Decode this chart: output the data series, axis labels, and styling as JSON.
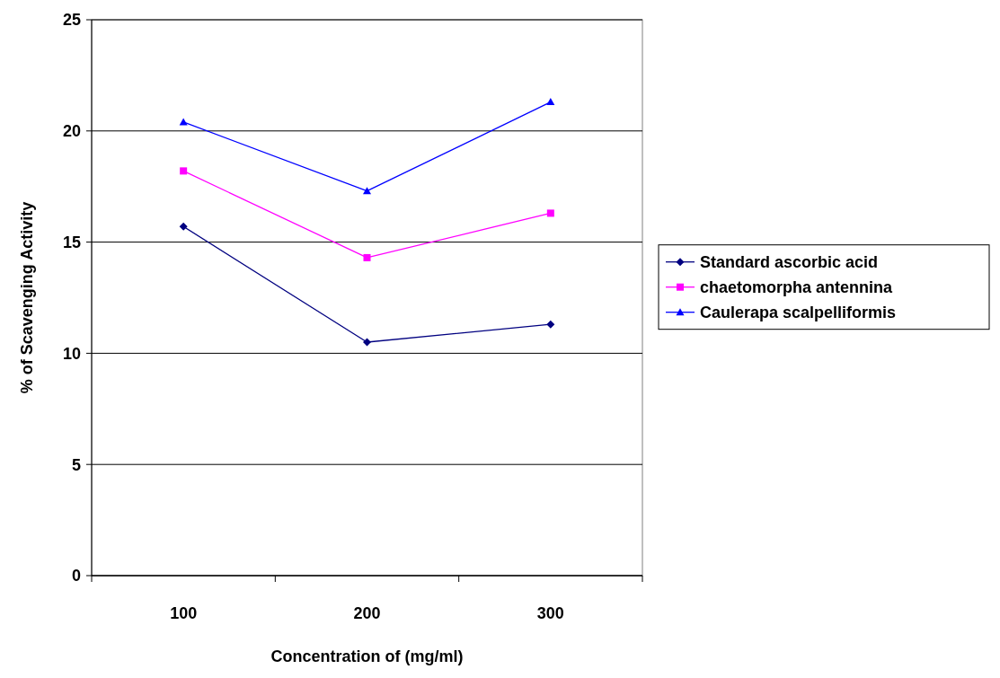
{
  "chart_data": {
    "type": "line",
    "xlabel": "Concentration of (mg/ml)",
    "ylabel": "% of Scavenging Activity",
    "categories": [
      "100",
      "200",
      "300"
    ],
    "ylim": [
      0,
      25
    ],
    "yticks": [
      0,
      5,
      10,
      15,
      20,
      25
    ],
    "grid": "y",
    "legend": "right",
    "series": [
      {
        "name": "Standard ascorbic acid",
        "color": "#000080",
        "marker": "diamond",
        "values": [
          15.7,
          10.5,
          11.3
        ]
      },
      {
        "name": "chaetomorpha antennina",
        "color": "#ff00ff",
        "marker": "square",
        "values": [
          18.2,
          14.3,
          16.3
        ]
      },
      {
        "name": "Caulerapa scalpelliformis",
        "color": "#0000ff",
        "marker": "triangle",
        "values": [
          20.4,
          17.3,
          21.3
        ]
      }
    ]
  }
}
